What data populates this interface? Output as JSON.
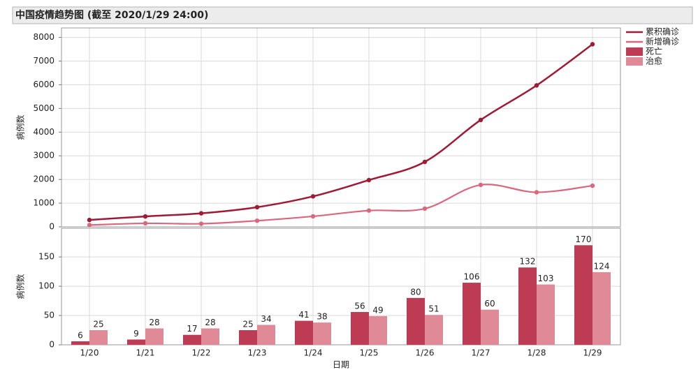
{
  "chart_data": [
    {
      "type": "line",
      "title": "中国疫情趋势图 (截至 2020/1/29 24:00)",
      "y_label": "病例数",
      "ylim": [
        0,
        8400
      ],
      "yticks": [
        0,
        1000,
        2000,
        3000,
        4000,
        5000,
        6000,
        7000,
        8000
      ],
      "grid": true,
      "legend": "right",
      "series": [
        {
          "name": "累积确诊",
          "color": "#9e1a35",
          "values": [
            291,
            440,
            571,
            830,
            1287,
            1975,
            2744,
            4515,
            5974,
            7711
          ]
        },
        {
          "name": "新增确诊",
          "color": "#d9677e",
          "values": [
            77,
            149,
            131,
            259,
            444,
            688,
            769,
            1771,
            1459,
            1737
          ]
        }
      ]
    },
    {
      "type": "bar",
      "x_label": "日期",
      "y_label": "病例数",
      "categories": [
        "1/20",
        "1/21",
        "1/22",
        "1/23",
        "1/24",
        "1/25",
        "1/26",
        "1/27",
        "1/28",
        "1/29"
      ],
      "ylim": [
        0,
        199
      ],
      "yticks": [
        0,
        50,
        100,
        150
      ],
      "grid": true,
      "series": [
        {
          "name": "死亡",
          "color": "#be3b55",
          "values": [
            6,
            9,
            17,
            25,
            41,
            56,
            80,
            106,
            132,
            170
          ]
        },
        {
          "name": "治愈",
          "color": "#e08a98",
          "values": [
            25,
            28,
            28,
            34,
            38,
            49,
            51,
            60,
            103,
            124
          ]
        }
      ]
    }
  ]
}
